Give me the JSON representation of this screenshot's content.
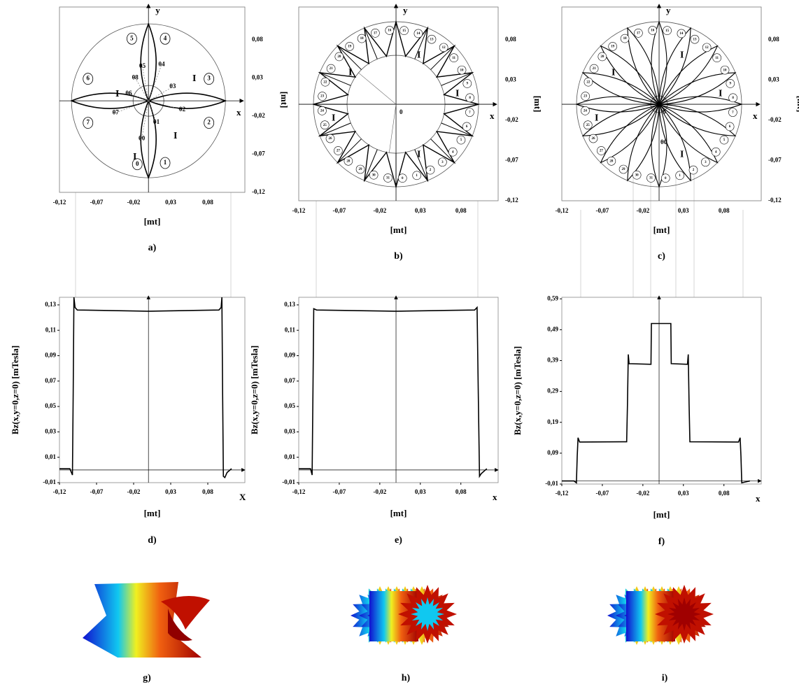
{
  "diagrams": [
    {
      "label": "a)",
      "x_axis": "x",
      "y_axis": "y",
      "x_unit": "[mt]",
      "y_unit": "[mt]",
      "current": "I",
      "xlim": [
        -0.12,
        0.13
      ],
      "ylim": [
        -0.12,
        0.123
      ],
      "xticks": [
        {
          "value": -0.12,
          "label": "-0,12"
        },
        {
          "value": -0.07,
          "label": "-0,07"
        },
        {
          "value": -0.02,
          "label": "-0,02"
        },
        {
          "value": 0.03,
          "label": "0,03"
        },
        {
          "value": 0.08,
          "label": "0,08"
        }
      ],
      "yticks": [
        {
          "value": 0.08,
          "label": "0,08"
        },
        {
          "value": 0.03,
          "label": "0,03"
        },
        {
          "value": -0.02,
          "label": "-0,02"
        },
        {
          "value": -0.07,
          "label": "-0,07"
        },
        {
          "value": -0.12,
          "label": "-0,12"
        }
      ],
      "coils": [
        "0",
        "1",
        "2",
        "3",
        "4",
        "5",
        "6",
        "7"
      ],
      "angles": [
        "θ0",
        "θ1",
        "θ2",
        "θ3",
        "θ4",
        "θ5",
        "θ6",
        "θ7",
        "θ8"
      ]
    },
    {
      "label": "b)",
      "x_axis": "x",
      "y_axis": "y",
      "x_unit": "[mt]",
      "y_unit": "[mt]",
      "current": "I",
      "origin": "0",
      "xlim": [
        -0.12,
        0.126
      ],
      "ylim": [
        -0.12,
        0.121
      ],
      "xticks": [
        {
          "value": -0.12,
          "label": "-0,12"
        },
        {
          "value": -0.07,
          "label": "-0,07"
        },
        {
          "value": -0.02,
          "label": "-0,02"
        },
        {
          "value": 0.03,
          "label": "0,03"
        },
        {
          "value": 0.08,
          "label": "0,08"
        }
      ],
      "yticks": [
        {
          "value": 0.08,
          "label": "0,08"
        },
        {
          "value": 0.03,
          "label": "0,03"
        },
        {
          "value": -0.02,
          "label": "-0,02"
        },
        {
          "value": -0.07,
          "label": "-0,07"
        },
        {
          "value": -0.12,
          "label": "-0,12"
        }
      ],
      "coils": [
        "0",
        "1",
        "2",
        "3",
        "4",
        "5",
        "6",
        "7",
        "8",
        "9",
        "10",
        "11",
        "12",
        "13",
        "14",
        "15",
        "16",
        "17",
        "18",
        "19",
        "20",
        "21",
        "22",
        "23",
        "24",
        "25",
        "26",
        "27",
        "28",
        "29",
        "30",
        "31"
      ]
    },
    {
      "label": "c)",
      "x_axis": "x",
      "y_axis": "y",
      "x_unit": "[mt]",
      "y_unit": "[mt]",
      "current": "I",
      "origin": "0",
      "xlim": [
        -0.12,
        0.126
      ],
      "ylim": [
        -0.12,
        0.121
      ],
      "xticks": [
        {
          "value": -0.12,
          "label": "-0,12"
        },
        {
          "value": -0.07,
          "label": "-0,07"
        },
        {
          "value": -0.02,
          "label": "-0,02"
        },
        {
          "value": 0.03,
          "label": "0,03"
        },
        {
          "value": 0.08,
          "label": "0,08"
        }
      ],
      "yticks": [
        {
          "value": 0.08,
          "label": "0,08"
        },
        {
          "value": 0.03,
          "label": "0,03"
        },
        {
          "value": -0.02,
          "label": "-0,02"
        },
        {
          "value": -0.07,
          "label": "-0,07"
        },
        {
          "value": -0.12,
          "label": "-0,12"
        }
      ],
      "coils": [
        "0",
        "1",
        "2",
        "3",
        "4",
        "5",
        "6",
        "7",
        "8",
        "9",
        "10",
        "11",
        "12",
        "13",
        "14",
        "15",
        "16",
        "17",
        "18",
        "19",
        "20",
        "21",
        "22",
        "23",
        "24",
        "25",
        "26",
        "27",
        "28",
        "29",
        "30",
        "31"
      ],
      "angles": [
        "θ0"
      ]
    }
  ],
  "chart_data": [
    {
      "type": "line",
      "caption": "d)",
      "xlabel": "[mt]",
      "ylabel": "Bz(x,y=0,z=0)  [mTesla]",
      "x_axis": "X",
      "color": "#000000",
      "xlim": [
        -0.12,
        0.13
      ],
      "ylim": [
        -0.01,
        0.136
      ],
      "xticks": [
        {
          "value": -0.12,
          "label": "-0,12"
        },
        {
          "value": -0.07,
          "label": "-0,07"
        },
        {
          "value": -0.02,
          "label": "-0,02"
        },
        {
          "value": 0.03,
          "label": "0,03"
        },
        {
          "value": 0.08,
          "label": "0,08"
        }
      ],
      "yticks": [
        {
          "value": 0.13,
          "label": "0,13"
        },
        {
          "value": 0.11,
          "label": "0,11"
        },
        {
          "value": 0.09,
          "label": "0,09"
        },
        {
          "value": 0.07,
          "label": "0,07"
        },
        {
          "value": 0.05,
          "label": "0,05"
        },
        {
          "value": 0.03,
          "label": "0,03"
        },
        {
          "value": 0.01,
          "label": "0,01"
        },
        {
          "value": -0.01,
          "label": "-0,01"
        }
      ],
      "x": [
        -0.12,
        -0.106,
        -0.1025,
        -0.1015,
        -0.1005,
        -0.099,
        -0.096,
        0,
        0.095,
        0.098,
        0.099,
        0.1,
        0.101,
        0.103,
        0.106,
        0.112
      ],
      "values": [
        0.001,
        0.001,
        -0.004,
        0.06,
        0.136,
        0.128,
        0.126,
        0.125,
        0.126,
        0.128,
        0.136,
        0.06,
        -0.005,
        -0.006,
        -0.002,
        0.001
      ]
    },
    {
      "type": "line",
      "caption": "e)",
      "xlabel": "[mt]",
      "ylabel": "Bz(x,y=0,z=0)  [mTesla]",
      "x_axis": "x",
      "color": "#000000",
      "xlim": [
        -0.12,
        0.126
      ],
      "ylim": [
        -0.01,
        0.136
      ],
      "xticks": [
        {
          "value": -0.12,
          "label": "-0,12"
        },
        {
          "value": -0.07,
          "label": "-0,07"
        },
        {
          "value": -0.02,
          "label": "-0,02"
        },
        {
          "value": 0.03,
          "label": "0,03"
        },
        {
          "value": 0.08,
          "label": "0,08"
        }
      ],
      "yticks": [
        {
          "value": 0.13,
          "label": "0,13"
        },
        {
          "value": 0.11,
          "label": "0,11"
        },
        {
          "value": 0.09,
          "label": "0,09"
        },
        {
          "value": 0.07,
          "label": "0,07"
        },
        {
          "value": 0.05,
          "label": "0,05"
        },
        {
          "value": 0.03,
          "label": "0,03"
        },
        {
          "value": 0.01,
          "label": "0,01"
        },
        {
          "value": -0.01,
          "label": "-0,01"
        }
      ],
      "x": [
        -0.12,
        -0.1055,
        -0.1035,
        -0.1025,
        -0.1015,
        -0.098,
        0,
        0.097,
        0.1,
        0.1015,
        0.103,
        0.105,
        0.112
      ],
      "values": [
        0.001,
        0.001,
        -0.004,
        0.06,
        0.127,
        0.126,
        0.125,
        0.126,
        0.128,
        0.06,
        -0.005,
        -0.003,
        0.001
      ]
    },
    {
      "type": "line",
      "caption": "f)",
      "xlabel": "[mt]",
      "ylabel": "Bz(x,y=0,z=0)  [mTesla]",
      "x_axis": "x",
      "color": "#000000",
      "xlim": [
        -0.12,
        0.126
      ],
      "ylim": [
        -0.01,
        0.595
      ],
      "xticks": [
        {
          "value": -0.12,
          "label": "-0,12"
        },
        {
          "value": -0.07,
          "label": "-0,07"
        },
        {
          "value": -0.02,
          "label": "-0,02"
        },
        {
          "value": 0.03,
          "label": "0,03"
        },
        {
          "value": 0.08,
          "label": "0,08"
        }
      ],
      "yticks": [
        {
          "value": 0.59,
          "label": "0,59"
        },
        {
          "value": 0.49,
          "label": "0,49"
        },
        {
          "value": 0.39,
          "label": "0,39"
        },
        {
          "value": 0.29,
          "label": "0,29"
        },
        {
          "value": 0.19,
          "label": "0,19"
        },
        {
          "value": 0.09,
          "label": "0,09"
        },
        {
          "value": -0.01,
          "label": "-0,01"
        }
      ],
      "x": [
        -0.12,
        -0.105,
        -0.102,
        -0.101,
        -0.1,
        -0.098,
        -0.04,
        -0.039,
        -0.038,
        -0.037,
        -0.01,
        -0.0095,
        0.0145,
        0.015,
        0.035,
        0.036,
        0.037,
        0.038,
        0.098,
        0.1,
        0.101,
        0.102,
        0.105,
        0.112
      ],
      "values": [
        0.0,
        0.0,
        -0.006,
        0.08,
        0.14,
        0.126,
        0.127,
        0.25,
        0.41,
        0.38,
        0.378,
        0.51,
        0.51,
        0.38,
        0.378,
        0.41,
        0.25,
        0.127,
        0.126,
        0.14,
        0.08,
        -0.006,
        -0.004,
        0.0
      ]
    }
  ],
  "renders": [
    {
      "label": "g)"
    },
    {
      "label": "h)"
    },
    {
      "label": "i)"
    }
  ]
}
